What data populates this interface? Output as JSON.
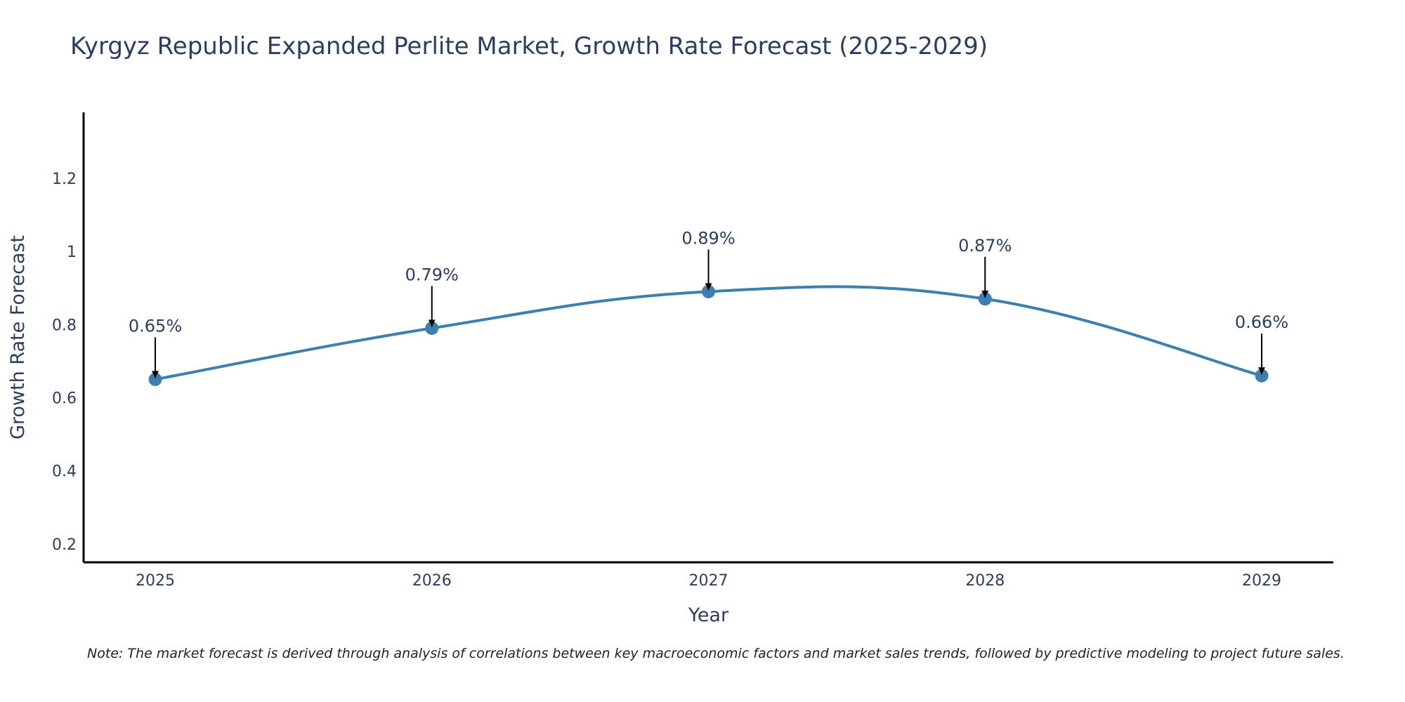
{
  "chart_data": {
    "type": "line",
    "title": "Kyrgyz Republic Expanded Perlite Market, Growth Rate Forecast (2025-2029)",
    "xlabel": "Year",
    "ylabel": "Growth Rate Forecast",
    "categories": [
      "2025",
      "2026",
      "2027",
      "2028",
      "2029"
    ],
    "series": [
      {
        "name": "Growth Rate Forecast",
        "values": [
          0.65,
          0.79,
          0.89,
          0.87,
          0.66
        ],
        "labels": [
          "0.65%",
          "0.79%",
          "0.89%",
          "0.87%",
          "0.66%"
        ],
        "color": "#3d7fb0"
      }
    ],
    "ylim": [
      0.15,
      1.38
    ],
    "yticks": [
      0.2,
      0.4,
      0.6,
      0.8,
      1,
      1.2
    ],
    "ytick_labels": [
      "0.2",
      "0.4",
      "0.6",
      "0.8",
      "1",
      "1.2"
    ],
    "grid": false,
    "line_shape": "spline",
    "annotations": "arrow pointing to each data point with percentage label",
    "note": "Note: The market forecast is derived through analysis of correlations between key macroeconomic factors and market sales trends, followed by predictive modeling to project future sales."
  },
  "colors": {
    "line": "#3d7fb0",
    "marker": "#3d7fb0",
    "axis": "#000000",
    "text": "#2a3f5f",
    "arrow": "#000000"
  }
}
